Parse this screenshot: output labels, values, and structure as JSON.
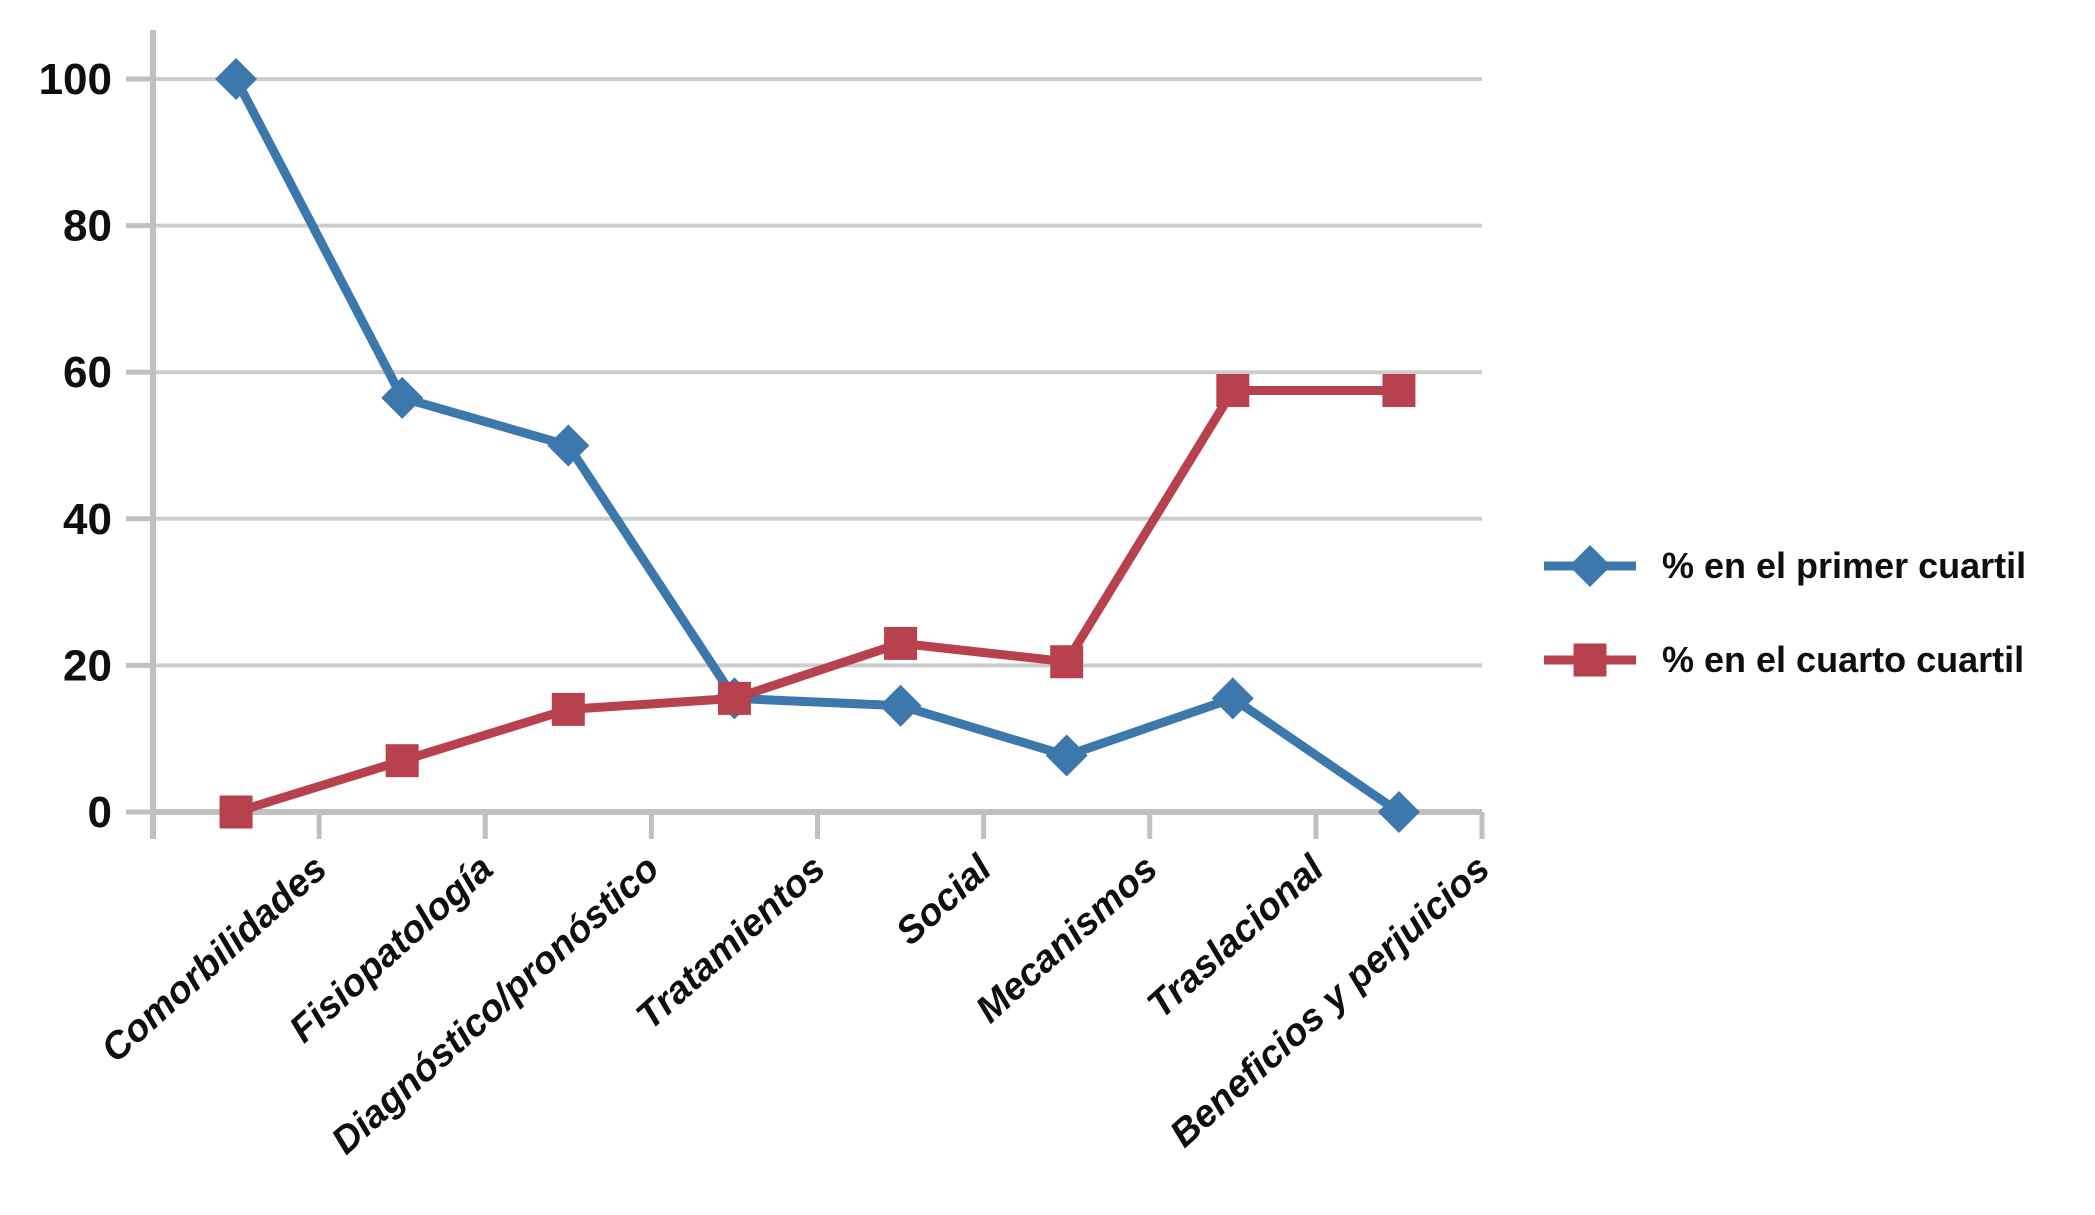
{
  "chart_data": {
    "type": "line",
    "title": "",
    "categories": [
      "Comorbilidades",
      "Fisiopatología",
      "Diagnóstico/pronóstico",
      "Tratamientos",
      "Social",
      "Mecanismos",
      "Traslacional",
      "Beneficios y perjuicios"
    ],
    "series": [
      {
        "name": "% en el primer cuartil",
        "marker": "diamond",
        "color": "#3C78AC",
        "values": [
          100,
          56.5,
          50,
          15.5,
          14.5,
          7.7,
          15.5,
          0
        ]
      },
      {
        "name": "% en el cuarto cuartil",
        "marker": "square",
        "color": "#B8414E",
        "values": [
          0,
          7,
          14,
          15.5,
          23,
          20.5,
          57.5,
          57.5
        ]
      }
    ],
    "xlabel": "",
    "ylabel": "",
    "ylim": [
      0,
      100
    ],
    "yticks": [
      0,
      20,
      40,
      60,
      80,
      100
    ],
    "grid": true,
    "legend_position": "right-middle",
    "colors": {
      "grid": "#CDCDCB",
      "axis": "#C0C0BE",
      "text": "#0F0F0F",
      "background": "#FFFFFF"
    }
  }
}
